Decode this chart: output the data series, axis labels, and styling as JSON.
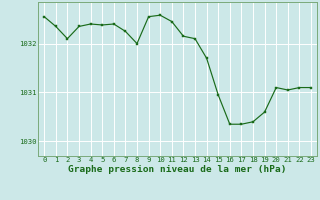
{
  "x": [
    0,
    1,
    2,
    3,
    4,
    5,
    6,
    7,
    8,
    9,
    10,
    11,
    12,
    13,
    14,
    15,
    16,
    17,
    18,
    19,
    20,
    21,
    22,
    23
  ],
  "y": [
    1032.55,
    1032.35,
    1032.1,
    1032.35,
    1032.4,
    1032.38,
    1032.4,
    1032.25,
    1032.0,
    1032.55,
    1032.58,
    1032.45,
    1032.15,
    1032.1,
    1031.7,
    1030.95,
    1030.35,
    1030.35,
    1030.4,
    1030.6,
    1031.1,
    1031.05,
    1031.1,
    1031.1
  ],
  "line_color": "#1a6b1a",
  "marker_color": "#1a6b1a",
  "bg_color": "#cce8e8",
  "grid_color": "#ffffff",
  "xlabel": "Graphe pression niveau de la mer (hPa)",
  "xlabel_color": "#1a6b1a",
  "tick_color": "#1a6b1a",
  "border_color": "#7aaa7a",
  "ylim": [
    1029.7,
    1032.85
  ],
  "yticks": [
    1030,
    1031,
    1032
  ],
  "xticks": [
    0,
    1,
    2,
    3,
    4,
    5,
    6,
    7,
    8,
    9,
    10,
    11,
    12,
    13,
    14,
    15,
    16,
    17,
    18,
    19,
    20,
    21,
    22,
    23
  ],
  "tick_fontsize": 5.2,
  "xlabel_fontsize": 6.8,
  "linewidth": 0.85,
  "markersize": 2.0
}
